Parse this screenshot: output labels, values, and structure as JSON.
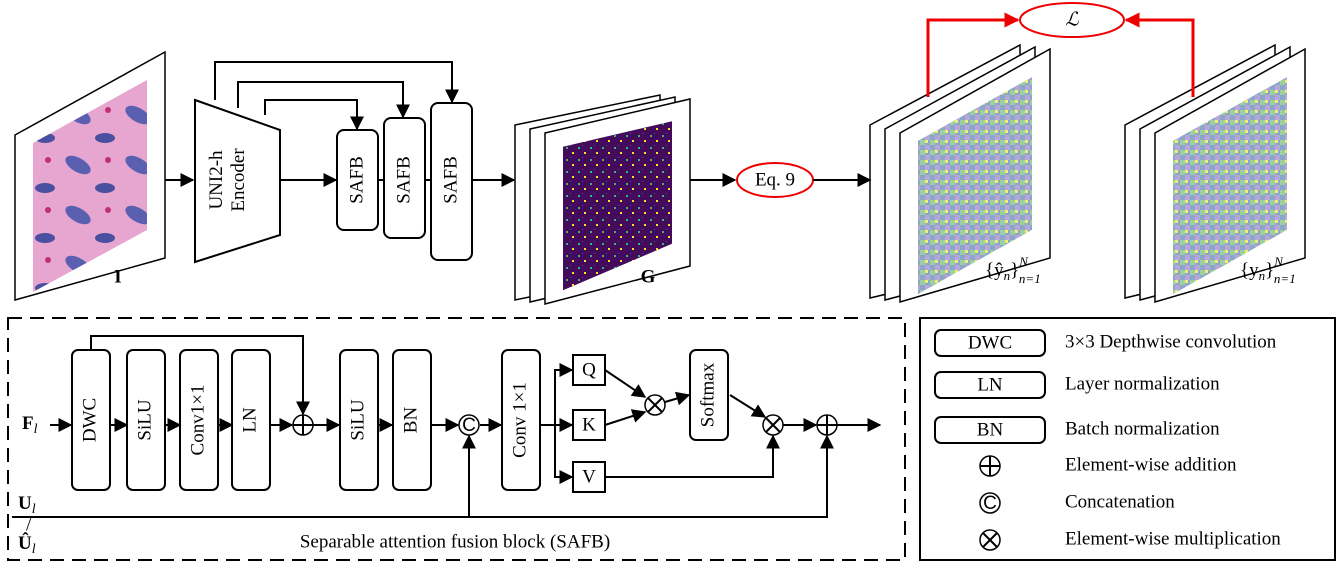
{
  "top": {
    "input_label": "I",
    "encoder": [
      "UNI2-h",
      "Encoder"
    ],
    "safb": [
      "SAFB",
      "SAFB",
      "SAFB"
    ],
    "feature_label": "G",
    "eq": "Eq. 9",
    "loss": "ℒ",
    "pred_label": {
      "open": "{ŷ",
      "idx": "n",
      "close": "}",
      "sup": "N",
      "sub": "n=1"
    },
    "gt_label": {
      "open": "{y",
      "idx": "n",
      "close": "}",
      "sup": "N",
      "sub": "n=1"
    }
  },
  "bottom": {
    "input": {
      "base": "F",
      "sub": "l"
    },
    "blocks": [
      "DWC",
      "SiLU",
      "Conv1×1",
      "LN",
      "SiLU",
      "BN",
      "Conv 1×1",
      "Softmax"
    ],
    "concat": "C",
    "qkv": [
      "Q",
      "K",
      "V"
    ],
    "skip": {
      "top": {
        "base": "U",
        "sub": "l"
      },
      "sep": "/",
      "bottom": {
        "base": "Û",
        "sub": "l"
      }
    },
    "caption": "Separable attention fusion block (SAFB)"
  },
  "legend": {
    "items": [
      {
        "symbol": "DWC",
        "label": "3×3 Depthwise convolution"
      },
      {
        "symbol": "LN",
        "label": "Layer normalization"
      },
      {
        "symbol": "BN",
        "label": "Batch normalization"
      },
      {
        "label": "Element-wise addition"
      },
      {
        "symbol": "C",
        "label": "Concatenation"
      },
      {
        "label": "Element-wise multiplication"
      }
    ]
  }
}
